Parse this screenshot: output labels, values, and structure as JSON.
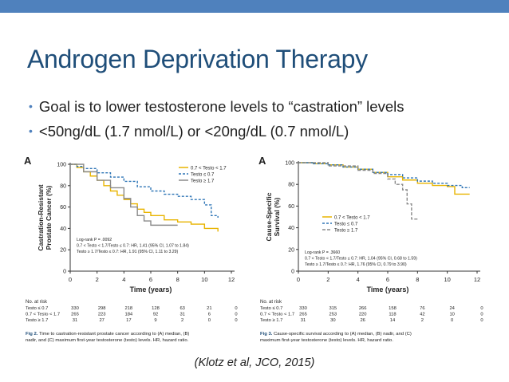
{
  "slide": {
    "title": "Androgen Deprivation Therapy",
    "bullets": [
      "Goal is to lower testosterone levels to “castration” levels",
      "<50ng/dL (1.7 nmol/L) or <20ng/dL (0.7 nmol/L)"
    ],
    "citation": "(Klotz et al, JCO, 2015)",
    "accent_color": "#4f81bd",
    "title_color": "#1f4e79"
  },
  "chart_data": [
    {
      "type": "line",
      "panel_label": "A",
      "ylabel_line1": "Castration-Resistant",
      "ylabel_line2": "Prostate Cancer (%)",
      "xlabel": "Time (years)",
      "xlim": [
        0,
        12
      ],
      "ylim": [
        0,
        100
      ],
      "x_ticks": [
        "0",
        "2",
        "4",
        "6",
        "8",
        "10",
        "12"
      ],
      "y_ticks": [
        "0",
        "20",
        "40",
        "60",
        "80",
        "100"
      ],
      "legend": [
        "0.7 < Testo < 1.7",
        "Testo ≤ 0.7",
        "Testo ≥ 1.7"
      ],
      "stats": [
        "Log-rank P = .0092",
        "0.7 < Testo < 1.7/Testo ≤ 0.7: HR, 1.41 (95% CI, 1.07 to 1.84)",
        "Testo ≥ 1.7/Testo ≤ 0.7: HR, 1.91 (95% CI, 1.11 to 3.29)"
      ],
      "series": [
        {
          "name": "0.7 < Testo < 1.7",
          "color": "#e8b400",
          "dash": "",
          "x": [
            0,
            0.5,
            1,
            1.5,
            2,
            2.5,
            3,
            3.5,
            4,
            4.5,
            5,
            5.5,
            6,
            7,
            8,
            9,
            10,
            11
          ],
          "y": [
            100,
            97,
            93,
            89,
            85,
            80,
            75,
            71,
            67,
            63,
            58,
            55,
            52,
            48,
            46,
            44,
            40,
            37
          ]
        },
        {
          "name": "Testo ≤ 0.7",
          "color": "#2e75b6",
          "dash": "3,2",
          "x": [
            0,
            0.5,
            1,
            2,
            3,
            4,
            5,
            6,
            7,
            8,
            9,
            10,
            10.5,
            11
          ],
          "y": [
            100,
            98,
            96,
            92,
            88,
            84,
            79,
            75,
            72,
            70,
            67,
            62,
            52,
            50
          ]
        },
        {
          "name": "Testo ≥ 1.7",
          "color": "#8a8a8a",
          "dash": "",
          "x": [
            0,
            1,
            2,
            3,
            4,
            4.5,
            5,
            5.5,
            6,
            7,
            8
          ],
          "y": [
            100,
            93,
            85,
            78,
            68,
            60,
            52,
            47,
            43,
            43,
            43
          ]
        }
      ],
      "risk_table": {
        "header": "No. at risk",
        "rows": [
          {
            "label": "Testo ≤ 0.7",
            "values": [
              "330",
              "298",
              "218",
              "128",
              "63",
              "21",
              "0"
            ]
          },
          {
            "label": "0.7 < Testo < 1.7",
            "values": [
              "265",
              "223",
              "184",
              "92",
              "31",
              "6",
              "0"
            ]
          },
          {
            "label": "Testo ≥ 1.7",
            "values": [
              "31",
              "27",
              "17",
              "9",
              "2",
              "0",
              "0"
            ]
          }
        ]
      },
      "caption_bold": "Fig 2.",
      "caption_line1": "Time to castration-resistant prostate cancer according to (A) median, (B)",
      "caption_line2": "nadir, and (C) maximum first-year testosterone (testo) levels. HR, hazard ratio."
    },
    {
      "type": "line",
      "panel_label": "A",
      "ylabel_line1": "Cause-Specific",
      "ylabel_line2": "Survival (%)",
      "xlabel": "Time (years)",
      "xlim": [
        0,
        12
      ],
      "ylim": [
        0,
        100
      ],
      "x_ticks": [
        "0",
        "2",
        "4",
        "6",
        "8",
        "10",
        "12"
      ],
      "y_ticks": [
        "0",
        "20",
        "40",
        "60",
        "80",
        "100"
      ],
      "legend": [
        "0.7 < Testo < 1.7",
        "Testo ≤ 0.7",
        "Testo ≥ 1.7"
      ],
      "stats": [
        "Log-rank P = .3660",
        "0.7 < Testo < 1.7/Testo ≤ 0.7: HR, 1.04 (95% CI, 0.68 to 1.59)",
        "Testo ≥ 1.7/Testo ≤ 0.7: HR, 1.76 (95% CI, 0.79 to 3.90)"
      ],
      "series": [
        {
          "name": "0.7 < Testo < 1.7",
          "color": "#e8b400",
          "dash": "",
          "x": [
            0,
            1,
            2,
            3,
            4,
            5,
            6,
            7,
            8,
            9,
            10,
            10.5,
            11.5
          ],
          "y": [
            100,
            99,
            98,
            96,
            94,
            91,
            87,
            84,
            81,
            79,
            78,
            71,
            71
          ]
        },
        {
          "name": "Testo ≤ 0.7",
          "color": "#2e75b6",
          "dash": "3,2",
          "x": [
            0,
            1,
            2,
            3,
            4,
            5,
            6,
            7,
            8,
            9,
            10,
            11,
            11.5
          ],
          "y": [
            100,
            99,
            98,
            96,
            94,
            91,
            89,
            86,
            83,
            81,
            79,
            77,
            77
          ]
        },
        {
          "name": "Testo ≥ 1.7",
          "color": "#8a8a8a",
          "dash": "4,2",
          "x": [
            0,
            2,
            4,
            5,
            6,
            6.5,
            7,
            7.3,
            7.6,
            8
          ],
          "y": [
            100,
            97,
            93,
            90,
            85,
            80,
            75,
            62,
            48,
            48
          ]
        }
      ],
      "risk_table": {
        "header": "No. at risk",
        "rows": [
          {
            "label": "Testo ≤ 0.7",
            "values": [
              "330",
              "315",
              "266",
              "158",
              "76",
              "24",
              "0"
            ]
          },
          {
            "label": "0.7 < Testo < 1.7",
            "values": [
              "265",
              "253",
              "220",
              "118",
              "42",
              "10",
              "0"
            ]
          },
          {
            "label": "Testo ≥ 1.7",
            "values": [
              "31",
              "30",
              "26",
              "14",
              "2",
              "0",
              "0"
            ]
          }
        ]
      },
      "caption_bold": "Fig 3.",
      "caption_line1": "Cause-specific survival according to (A) median, (B) nadir, and (C)",
      "caption_line2": "maximum first-year testosterone (testo) levels. HR, hazard ratio."
    }
  ]
}
